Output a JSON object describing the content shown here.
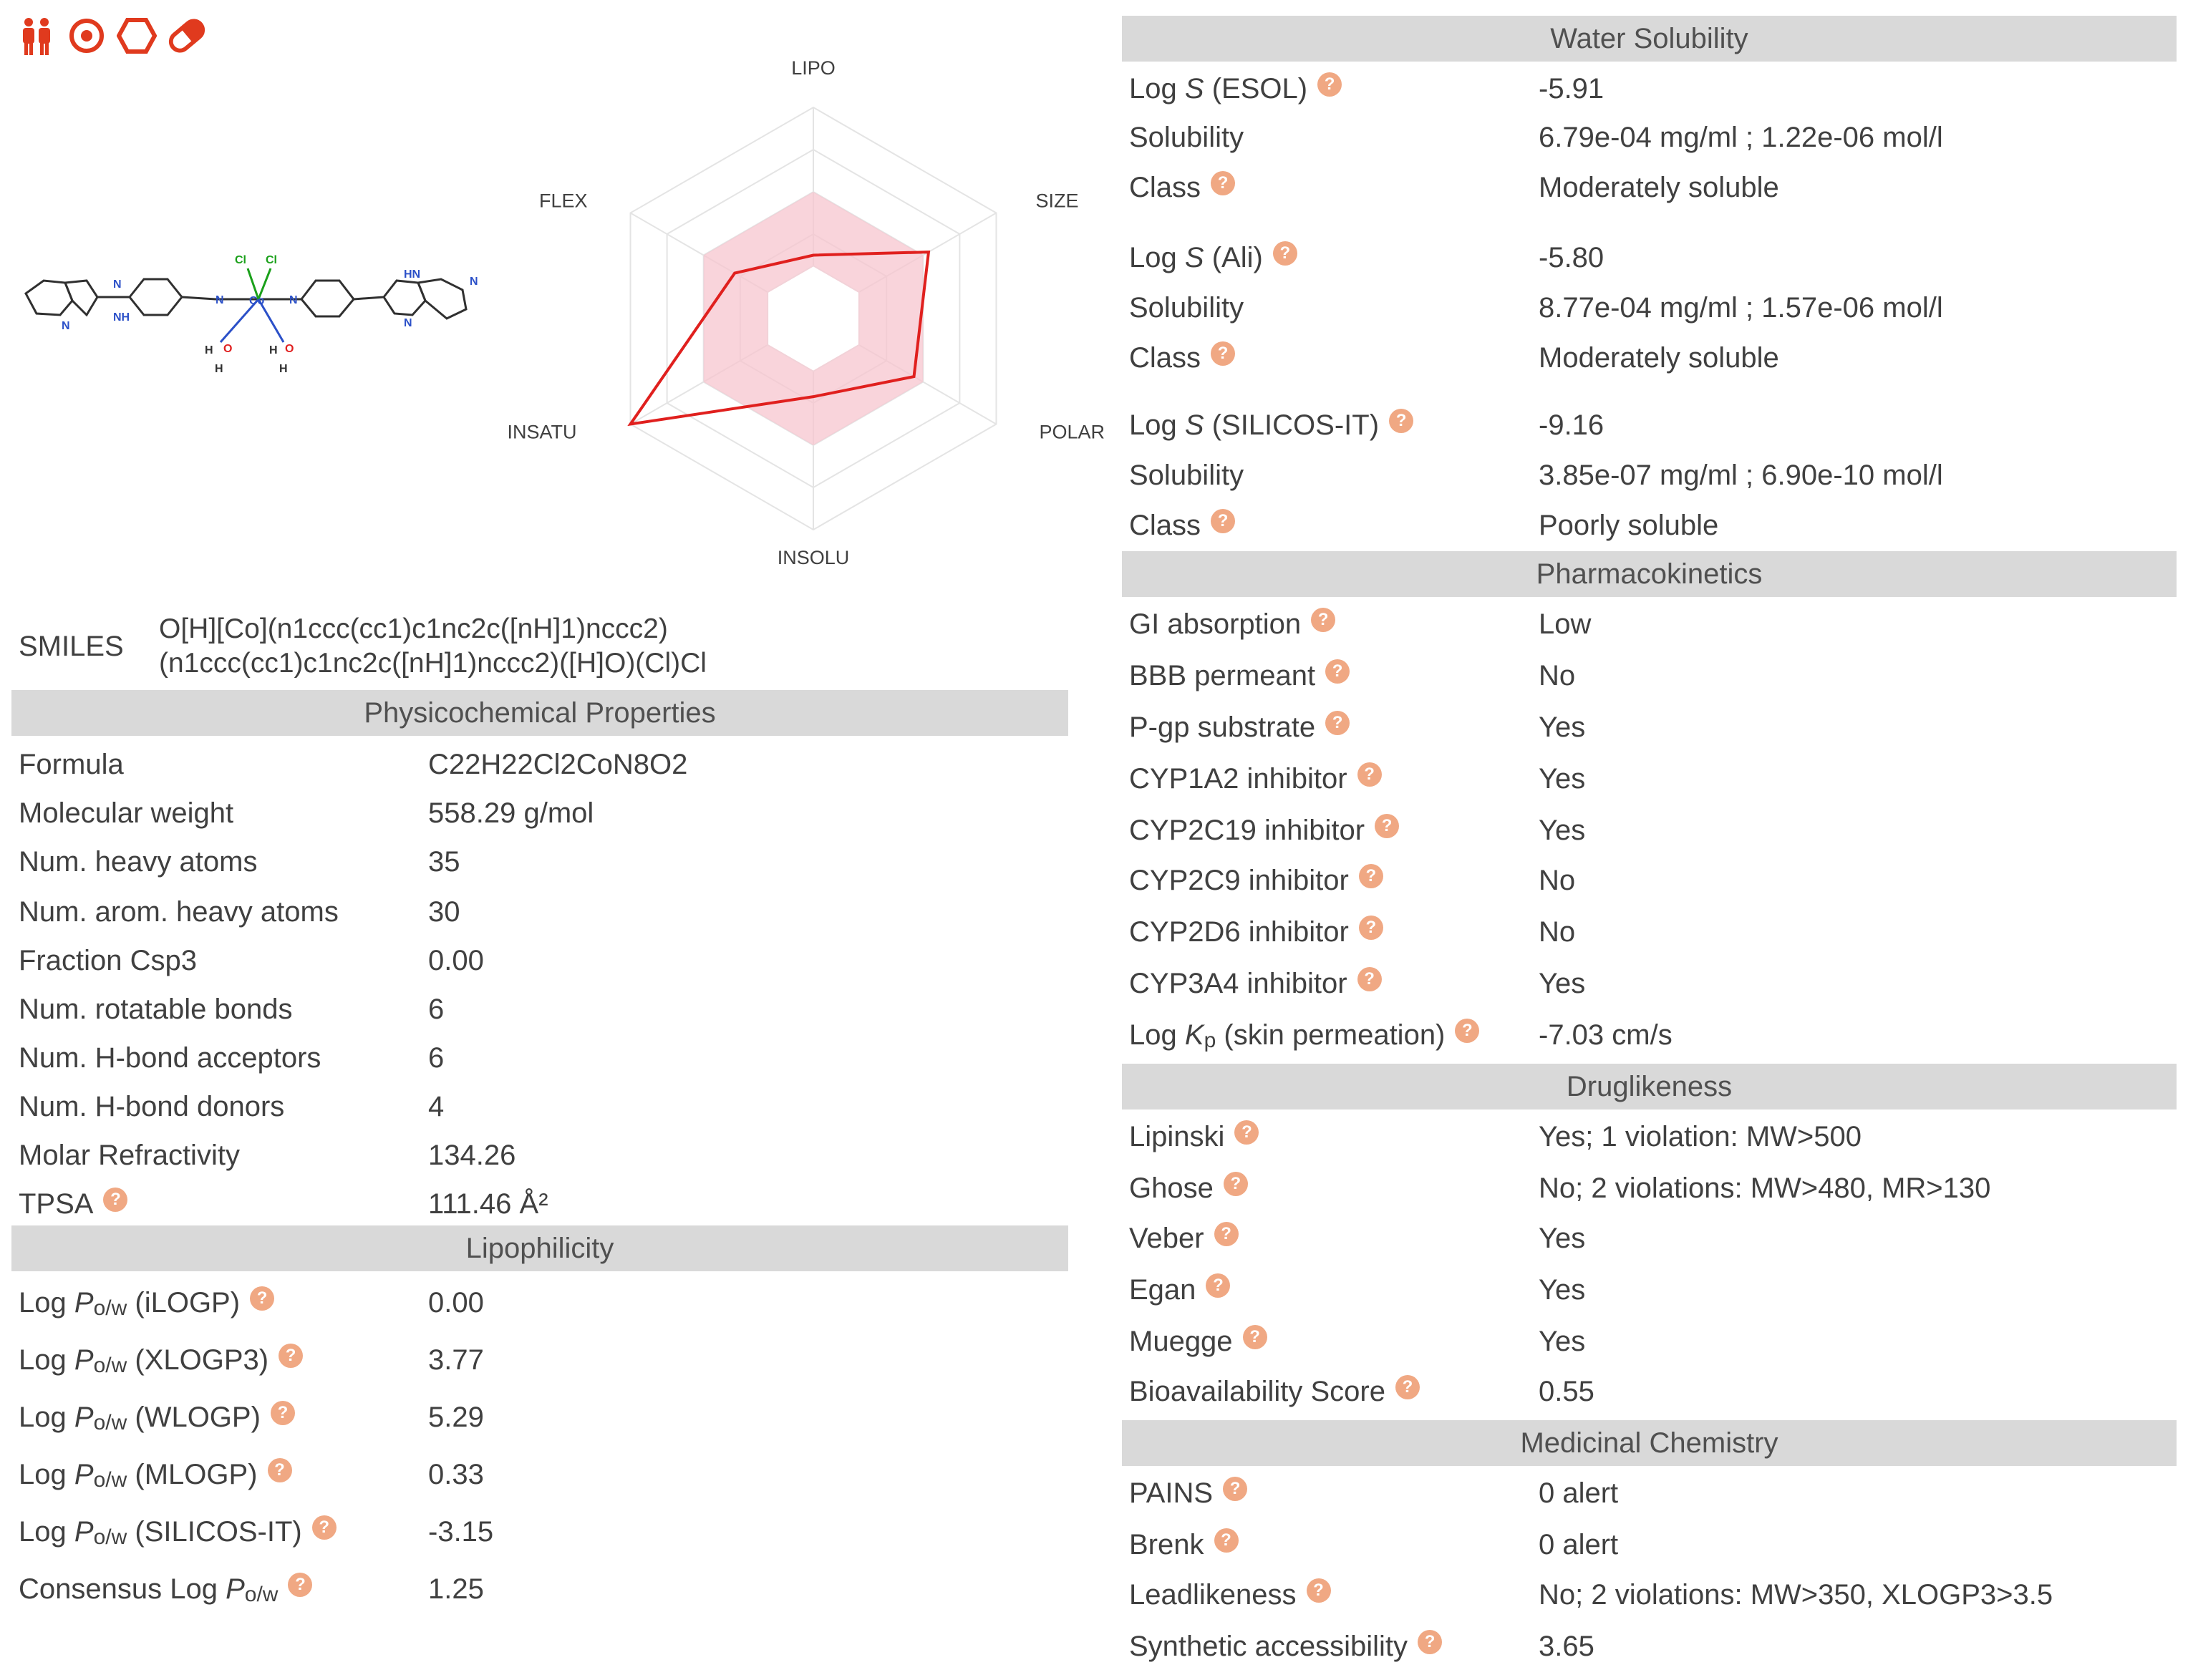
{
  "icons": [
    {
      "name": "people-icon",
      "color": "#e03a1e"
    },
    {
      "name": "target-icon",
      "color": "#e03a1e"
    },
    {
      "name": "hexagon-icon",
      "color": "#e03a1e"
    },
    {
      "name": "pill-icon",
      "color": "#e03a1e"
    }
  ],
  "molecule": {
    "atoms": {
      "n": "N",
      "nh": "NH",
      "hn": "HN",
      "co": "Co",
      "cl": "Cl",
      "o": "O",
      "h": "H"
    }
  },
  "radar": {
    "axes": [
      "LIPO",
      "SIZE",
      "POLAR",
      "INSOLU",
      "INSATU",
      "FLEX"
    ],
    "values": [
      0.3,
      0.63,
      0.55,
      0.37,
      1.0,
      0.43
    ],
    "optimal_inner": 0.25,
    "optimal_outer": 0.6,
    "line_color": "#e0201e",
    "fill_color": "#f7c6cf"
  },
  "smiles": {
    "label": "SMILES",
    "line1": "O[H][Co](n1ccc(cc1)c1nc2c([nH]1)nccc2)",
    "line2": "(n1ccc(cc1)c1nc2c([nH]1)nccc2)([H]O)(Cl)Cl"
  },
  "physchem": {
    "title": "Physicochemical Properties",
    "rows": [
      {
        "label": "Formula",
        "value": "C22H22Cl2CoN8O2"
      },
      {
        "label": "Molecular weight",
        "value": "558.29 g/mol"
      },
      {
        "label": "Num. heavy atoms",
        "value": "35"
      },
      {
        "label": "Num. arom. heavy atoms",
        "value": "30"
      },
      {
        "label": "Fraction Csp3",
        "value": "0.00"
      },
      {
        "label": "Num. rotatable bonds",
        "value": "6"
      },
      {
        "label": "Num. H-bond acceptors",
        "value": "6"
      },
      {
        "label": "Num. H-bond donors",
        "value": "4"
      },
      {
        "label": "Molar Refractivity",
        "value": "134.26"
      }
    ],
    "tpsa": {
      "label": "TPSA",
      "value": "111.46 Å²"
    }
  },
  "lipophilicity": {
    "title": "Lipophilicity",
    "log": "Log",
    "p": "P",
    "sub": "o/w",
    "consensus": "Consensus Log",
    "rows": [
      {
        "method": "(iLOGP)",
        "value": "0.00"
      },
      {
        "method": "(XLOGP3)",
        "value": "3.77"
      },
      {
        "method": "(WLOGP)",
        "value": "5.29"
      },
      {
        "method": "(MLOGP)",
        "value": "0.33"
      },
      {
        "method": "(SILICOS-IT)",
        "value": "-3.15"
      }
    ],
    "consensus_value": "1.25"
  },
  "water": {
    "title": "Water Solubility",
    "log": "Log",
    "s": "S",
    "solubility_label": "Solubility",
    "class_label": "Class",
    "groups": [
      {
        "method": "(ESOL)",
        "logs": "-5.91",
        "solubility": "6.79e-04 mg/ml ; 1.22e-06 mol/l",
        "class": "Moderately soluble"
      },
      {
        "method": "(Ali)",
        "logs": "-5.80",
        "solubility": "8.77e-04 mg/ml ; 1.57e-06 mol/l",
        "class": "Moderately soluble"
      },
      {
        "method": "(SILICOS-IT)",
        "logs": "-9.16",
        "solubility": "3.85e-07 mg/ml ; 6.90e-10 mol/l",
        "class": "Poorly soluble"
      }
    ]
  },
  "pk": {
    "title": "Pharmacokinetics",
    "rows": [
      {
        "label": "GI absorption",
        "value": "Low"
      },
      {
        "label": "BBB permeant",
        "value": "No"
      },
      {
        "label": "P-gp substrate",
        "value": "Yes"
      },
      {
        "label": "CYP1A2 inhibitor",
        "value": "Yes"
      },
      {
        "label": "CYP2C19 inhibitor",
        "value": "Yes"
      },
      {
        "label": "CYP2C9 inhibitor",
        "value": "No"
      },
      {
        "label": "CYP2D6 inhibitor",
        "value": "No"
      },
      {
        "label": "CYP3A4 inhibitor",
        "value": "Yes"
      }
    ],
    "kp_log": "Log",
    "kp_k": "K",
    "kp_sub": "p",
    "kp_rest": "(skin permeation)",
    "kp_value": "-7.03 cm/s"
  },
  "druglikeness": {
    "title": "Druglikeness",
    "rows": [
      {
        "label": "Lipinski",
        "value": "Yes; 1 violation: MW>500"
      },
      {
        "label": "Ghose",
        "value": "No; 2 violations: MW>480, MR>130"
      },
      {
        "label": "Veber",
        "value": "Yes"
      },
      {
        "label": "Egan",
        "value": "Yes"
      },
      {
        "label": "Muegge",
        "value": "Yes"
      },
      {
        "label": "Bioavailability Score",
        "value": "0.55"
      }
    ]
  },
  "medchem": {
    "title": "Medicinal Chemistry",
    "rows": [
      {
        "label": "PAINS",
        "value": "0 alert"
      },
      {
        "label": "Brenk",
        "value": "0 alert"
      },
      {
        "label": "Leadlikeness",
        "value": "No; 2 violations: MW>350, XLOGP3>3.5"
      },
      {
        "label": "Synthetic accessibility",
        "value": "3.65"
      }
    ]
  },
  "help_glyph": "?"
}
